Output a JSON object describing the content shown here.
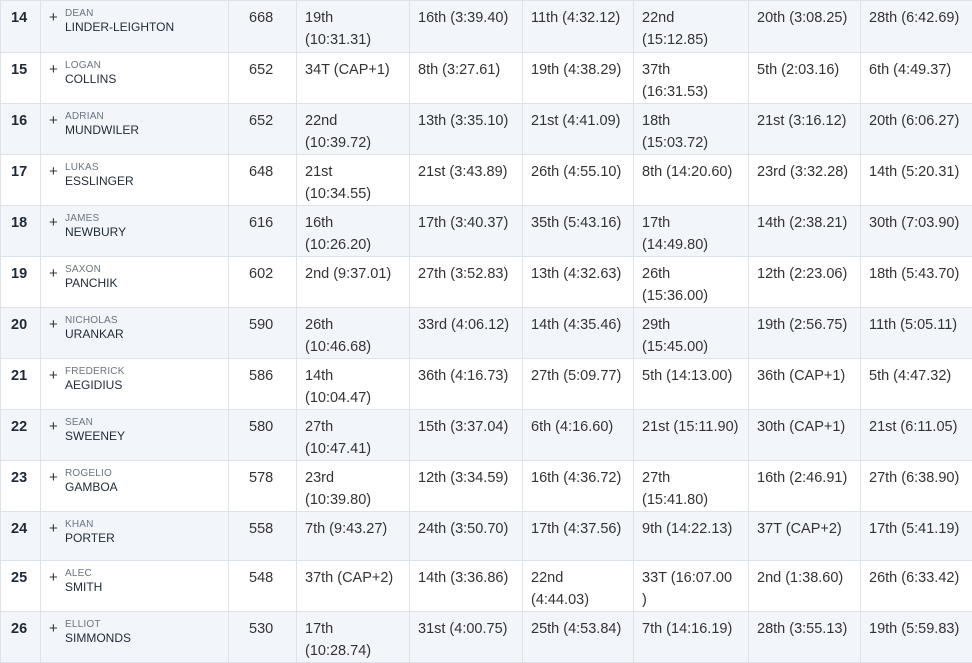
{
  "rows": [
    {
      "rank": "14",
      "first": "DEAN",
      "last": "LINDER-LEIGHTON",
      "points": "668",
      "events": [
        "19th (10:31.31)",
        "16th (3:39.40)",
        "11th (4:32.12)",
        "22nd (15:12.85)",
        "20th (3:08.25)",
        "28th (6:42.69)"
      ]
    },
    {
      "rank": "15",
      "first": "LOGAN",
      "last": "COLLINS",
      "points": "652",
      "events": [
        "34T (CAP+1)",
        "8th (3:27.61)",
        "19th (4:38.29)",
        "37th (16:31.53)",
        "5th (2:03.16)",
        "6th (4:49.37)"
      ]
    },
    {
      "rank": "16",
      "first": "ADRIAN",
      "last": "MUNDWILER",
      "points": "652",
      "events": [
        "22nd (10:39.72)",
        "13th (3:35.10)",
        "21st (4:41.09)",
        "18th (15:03.72)",
        "21st (3:16.12)",
        "20th (6:06.27)"
      ]
    },
    {
      "rank": "17",
      "first": "LUKAS",
      "last": "ESSLINGER",
      "points": "648",
      "events": [
        "21st (10:34.55)",
        "21st (3:43.89)",
        "26th (4:55.10)",
        "8th (14:20.60)",
        "23rd (3:32.28)",
        "14th (5:20.31)"
      ]
    },
    {
      "rank": "18",
      "first": "JAMES",
      "last": "NEWBURY",
      "points": "616",
      "events": [
        "16th (10:26.20)",
        "17th (3:40.37)",
        "35th (5:43.16)",
        "17th (14:49.80)",
        "14th (2:38.21)",
        "30th (7:03.90)"
      ]
    },
    {
      "rank": "19",
      "first": "SAXON",
      "last": "PANCHIK",
      "points": "602",
      "events": [
        "2nd (9:37.01)",
        "27th (3:52.83)",
        "13th (4:32.63)",
        "26th (15:36.00)",
        "12th (2:23.06)",
        "18th (5:43.70)"
      ]
    },
    {
      "rank": "20",
      "first": "NICHOLAS",
      "last": "URANKAR",
      "points": "590",
      "events": [
        "26th (10:46.68)",
        "33rd (4:06.12)",
        "14th (4:35.46)",
        "29th (15:45.00)",
        "19th (2:56.75)",
        "11th (5:05.11)"
      ]
    },
    {
      "rank": "21",
      "first": "FREDERICK",
      "last": "AEGIDIUS",
      "points": "586",
      "events": [
        "14th (10:04.47)",
        "36th (4:16.73)",
        "27th (5:09.77)",
        "5th (14:13.00)",
        "36th (CAP+1)",
        "5th (4:47.32)"
      ]
    },
    {
      "rank": "22",
      "first": "SEAN",
      "last": "SWEENEY",
      "points": "580",
      "events": [
        "27th (10:47.41)",
        "15th (3:37.04)",
        "6th (4:16.60)",
        "21st (15:11.90)",
        "30th (CAP+1)",
        "21st (6:11.05)"
      ]
    },
    {
      "rank": "23",
      "first": "ROGELIO",
      "last": "GAMBOA",
      "points": "578",
      "events": [
        "23rd (10:39.80)",
        "12th (3:34.59)",
        "16th (4:36.72)",
        "27th (15:41.80)",
        "16th (2:46.91)",
        "27th (6:38.90)"
      ]
    },
    {
      "rank": "24",
      "first": "KHAN",
      "last": "PORTER",
      "points": "558",
      "events": [
        "7th (9:43.27)",
        "24th (3:50.70)",
        "17th (4:37.56)",
        "9th (14:22.13)",
        "37T (CAP+2)",
        "17th (5:41.19)"
      ]
    },
    {
      "rank": "25",
      "first": "ALEC",
      "last": "SMITH",
      "points": "548",
      "events": [
        "37th (CAP+2)",
        "14th (3:36.86)",
        "22nd (4:44.03)",
        "33T (16:07.00 )",
        "2nd (1:38.60)",
        "26th (6:33.42)"
      ]
    },
    {
      "rank": "26",
      "first": "ELLIOT",
      "last": "SIMMONDS",
      "points": "530",
      "events": [
        "17th (10:28.74)",
        "31st (4:00.75)",
        "25th (4:53.84)",
        "7th (14:16.19)",
        "28th (3:55.13)",
        "19th (5:59.83)"
      ]
    }
  ],
  "expand_symbol": "+"
}
